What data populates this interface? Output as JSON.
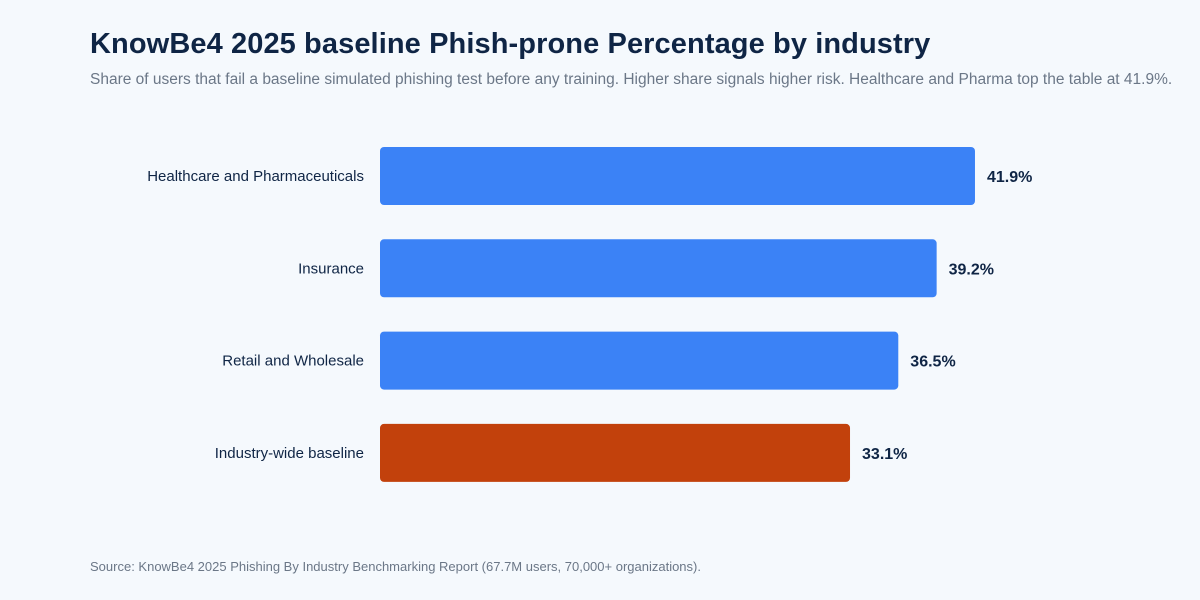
{
  "chart_data": {
    "type": "bar",
    "orientation": "horizontal",
    "title": "KnowBe4 2025 baseline Phish-prone Percentage by industry",
    "subtitle": "Share of users that fail a baseline simulated phishing test before any training. Higher share signals higher risk. Healthcare and Pharma top the table at 41.9%.",
    "categories": [
      "Healthcare and Pharmaceuticals",
      "Insurance",
      "Retail and Wholesale",
      "Industry-wide baseline"
    ],
    "values": [
      41.9,
      39.2,
      36.5,
      33.1
    ],
    "value_labels": [
      "41.9%",
      "39.2%",
      "36.5%",
      "33.1%"
    ],
    "highlight": [
      false,
      false,
      false,
      true
    ],
    "xlim": [
      0,
      50
    ],
    "xlabel": "",
    "ylabel": "",
    "grid": false,
    "colors": {
      "default": "#3b82f6",
      "highlight": "#c2410c"
    },
    "source": "Source: KnowBe4 2025 Phishing By Industry Benchmarking Report (67.7M users, 70,000+ organizations)."
  }
}
